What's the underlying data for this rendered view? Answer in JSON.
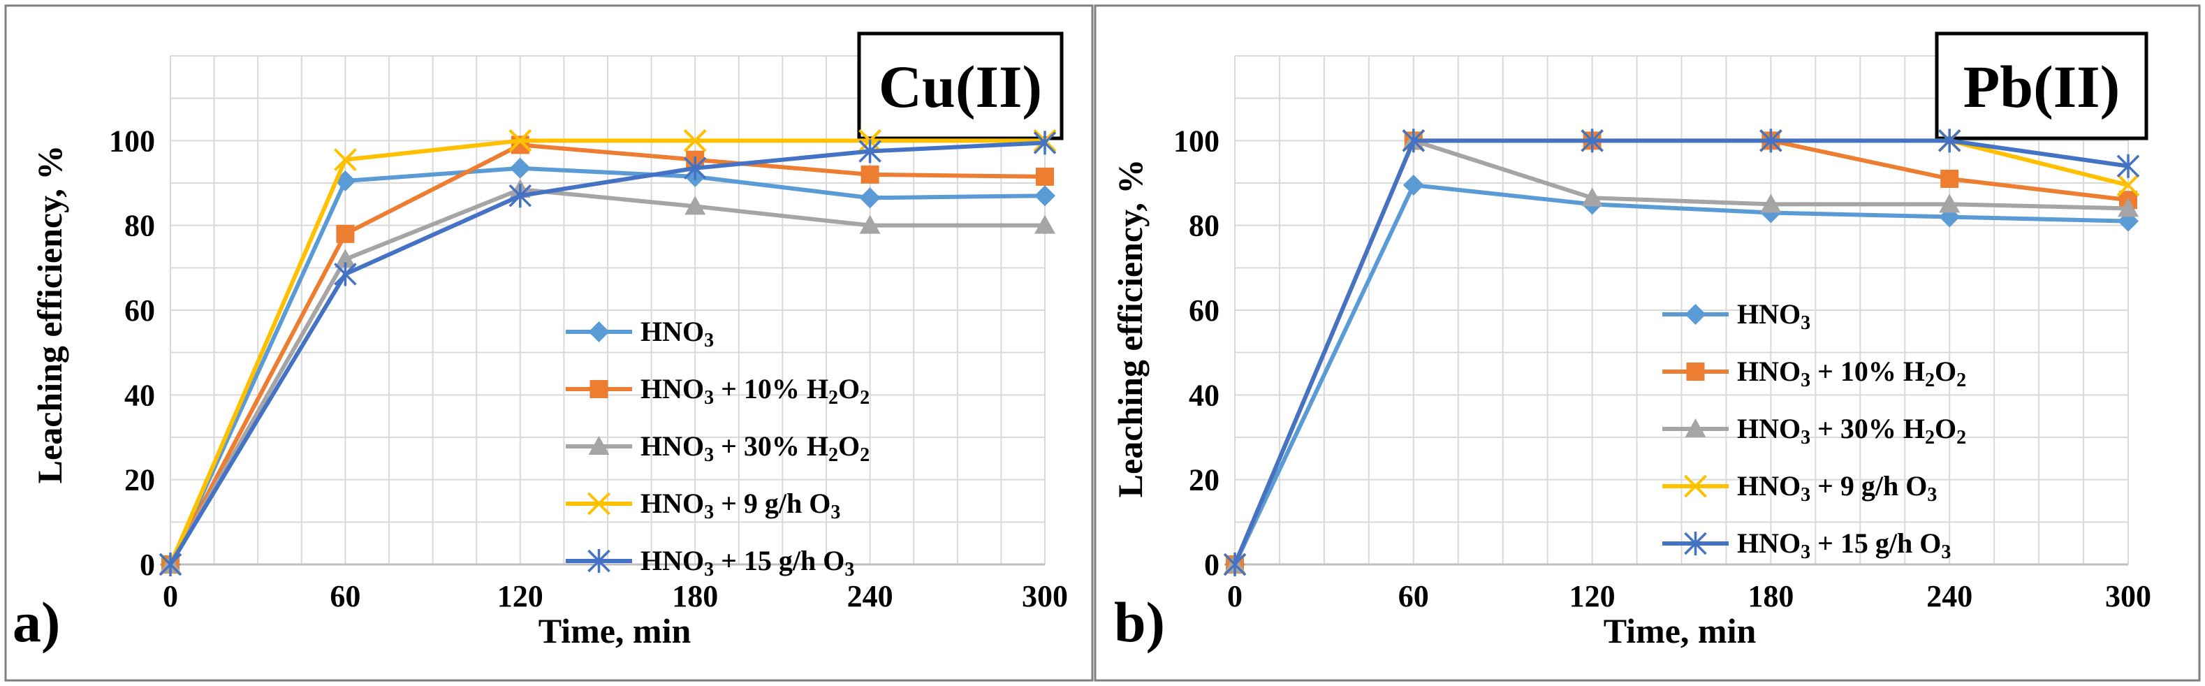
{
  "chart_data": [
    {
      "type": "line",
      "panel_label": "a)",
      "title": "Cu(II)",
      "xlabel": "Time, min",
      "ylabel": "Leaching efficiency, %",
      "x": [
        0,
        60,
        120,
        180,
        240,
        300
      ],
      "x_ticks": [
        "0",
        "60",
        "120",
        "180",
        "240",
        "300"
      ],
      "y_ticks": [
        "0",
        "20",
        "40",
        "60",
        "80",
        "100"
      ],
      "xlim": [
        0,
        300
      ],
      "ylim": [
        0,
        120
      ],
      "grid": true,
      "legend_position": "center-right",
      "series": [
        {
          "name": "HNO3",
          "label_parts": [
            [
              "HNO",
              ""
            ],
            [
              "3",
              "sub"
            ]
          ],
          "color": "#5B9BD5",
          "marker": "diamond",
          "values": [
            0,
            90.5,
            93.5,
            91.5,
            86.5,
            87
          ]
        },
        {
          "name": "HNO3 + 10% H2O2",
          "label_parts": [
            [
              "HNO",
              ""
            ],
            [
              "3",
              "sub"
            ],
            [
              " + 10% H",
              ""
            ],
            [
              "2",
              "sub"
            ],
            [
              "O",
              ""
            ],
            [
              "2",
              "sub"
            ]
          ],
          "color": "#ED7D31",
          "marker": "square",
          "values": [
            0,
            78,
            99,
            95.5,
            92,
            91.5
          ]
        },
        {
          "name": "HNO3 + 30% H2O2",
          "label_parts": [
            [
              "HNO",
              ""
            ],
            [
              "3",
              "sub"
            ],
            [
              " + 30% H",
              ""
            ],
            [
              "2",
              "sub"
            ],
            [
              "O",
              ""
            ],
            [
              "2",
              "sub"
            ]
          ],
          "color": "#A5A5A5",
          "marker": "triangle",
          "values": [
            0,
            72,
            88.5,
            84.5,
            80,
            80
          ]
        },
        {
          "name": "HNO3 + 9 g/h O3",
          "label_parts": [
            [
              "HNO",
              ""
            ],
            [
              "3",
              "sub"
            ],
            [
              " + 9 g/h O",
              ""
            ],
            [
              "3",
              "sub"
            ]
          ],
          "color": "#FFC000",
          "marker": "x",
          "values": [
            0,
            95.5,
            100,
            100,
            100,
            100
          ]
        },
        {
          "name": "HNO3 + 15 g/h O3",
          "label_parts": [
            [
              "HNO",
              ""
            ],
            [
              "3",
              "sub"
            ],
            [
              " + 15 g/h O",
              ""
            ],
            [
              "3",
              "sub"
            ]
          ],
          "color": "#4472C4",
          "marker": "star",
          "values": [
            0,
            68.5,
            87,
            93.5,
            97.5,
            99.5
          ]
        }
      ]
    },
    {
      "type": "line",
      "panel_label": "b)",
      "title": "Pb(II)",
      "xlabel": "Time, min",
      "ylabel": "Leaching efficiency, %",
      "x": [
        0,
        60,
        120,
        180,
        240,
        300
      ],
      "x_ticks": [
        "0",
        "60",
        "120",
        "180",
        "240",
        "300"
      ],
      "y_ticks": [
        "0",
        "20",
        "40",
        "60",
        "80",
        "100"
      ],
      "xlim": [
        0,
        300
      ],
      "ylim": [
        0,
        120
      ],
      "grid": true,
      "legend_position": "center-right",
      "series": [
        {
          "name": "HNO3",
          "label_parts": [
            [
              "HNO",
              ""
            ],
            [
              "3",
              "sub"
            ]
          ],
          "color": "#5B9BD5",
          "marker": "diamond",
          "values": [
            0,
            89.5,
            85,
            83,
            82,
            81
          ]
        },
        {
          "name": "HNO3 + 10% H2O2",
          "label_parts": [
            [
              "HNO",
              ""
            ],
            [
              "3",
              "sub"
            ],
            [
              " + 10% H",
              ""
            ],
            [
              "2",
              "sub"
            ],
            [
              "O",
              ""
            ],
            [
              "2",
              "sub"
            ]
          ],
          "color": "#ED7D31",
          "marker": "square",
          "values": [
            0,
            100,
            100,
            100,
            91,
            86
          ]
        },
        {
          "name": "HNO3 + 30% H2O2",
          "label_parts": [
            [
              "HNO",
              ""
            ],
            [
              "3",
              "sub"
            ],
            [
              " + 30% H",
              ""
            ],
            [
              "2",
              "sub"
            ],
            [
              "O",
              ""
            ],
            [
              "2",
              "sub"
            ]
          ],
          "color": "#A5A5A5",
          "marker": "triangle",
          "values": [
            0,
            100,
            86.5,
            85,
            85,
            84
          ]
        },
        {
          "name": "HNO3 + 9 g/h O3",
          "label_parts": [
            [
              "HNO",
              ""
            ],
            [
              "3",
              "sub"
            ],
            [
              " + 9 g/h O",
              ""
            ],
            [
              "3",
              "sub"
            ]
          ],
          "color": "#FFC000",
          "marker": "x",
          "values": [
            0,
            100,
            100,
            100,
            100,
            89.5
          ]
        },
        {
          "name": "HNO3 + 15 g/h O3",
          "label_parts": [
            [
              "HNO",
              ""
            ],
            [
              "3",
              "sub"
            ],
            [
              " + 15 g/h O",
              ""
            ],
            [
              "3",
              "sub"
            ]
          ],
          "color": "#4472C4",
          "marker": "star",
          "values": [
            0,
            100,
            100,
            100,
            100,
            94
          ]
        }
      ]
    }
  ]
}
